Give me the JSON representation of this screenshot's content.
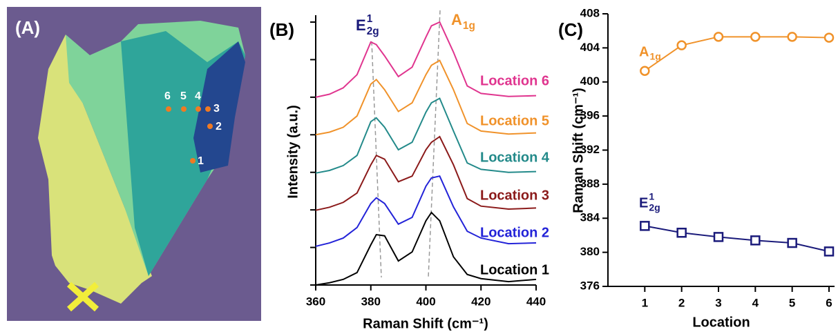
{
  "image_panel": {
    "label": "(A)",
    "points": [
      "1",
      "2",
      "3",
      "4",
      "5",
      "6"
    ]
  },
  "chart_data": [
    {
      "type": "line",
      "panel_label": "(B)",
      "xlabel": "Raman Shift (cm⁻¹)",
      "ylabel": "Intensity (a.u.)",
      "x": [
        360,
        365,
        370,
        375,
        380,
        382,
        385,
        390,
        395,
        400,
        402,
        405,
        410,
        415,
        420,
        430,
        440
      ],
      "xlim": [
        360,
        440
      ],
      "xticks": [
        360,
        380,
        400,
        420,
        440
      ],
      "ylim": [
        0,
        7
      ],
      "yticks": [
        0,
        1,
        2,
        3,
        4,
        5,
        6,
        7
      ],
      "annotations": [
        {
          "text": "E",
          "sup": "1",
          "sub": "2g"
        },
        {
          "text": "A",
          "sub": "1g"
        }
      ],
      "series": [
        {
          "name": "Location 1",
          "color": "#000000",
          "values": [
            0,
            0.06,
            0.15,
            0.33,
            1.07,
            1.34,
            1.31,
            0.64,
            0.88,
            1.71,
            1.93,
            1.71,
            0.75,
            0.28,
            0.17,
            0.09,
            0.15
          ]
        },
        {
          "name": "Location 2",
          "color": "#2323d8",
          "values": [
            1.03,
            1.12,
            1.25,
            1.53,
            2.17,
            2.32,
            2.17,
            1.62,
            1.8,
            2.63,
            2.85,
            2.9,
            2.08,
            1.43,
            1.25,
            1.1,
            1.12
          ]
        },
        {
          "name": "Location 3",
          "color": "#8b1a1a",
          "values": [
            1.99,
            2.07,
            2.2,
            2.45,
            3.2,
            3.45,
            3.35,
            2.75,
            2.9,
            3.6,
            3.8,
            3.95,
            3.2,
            2.3,
            2.1,
            2.02,
            2.05
          ]
        },
        {
          "name": "Location 4",
          "color": "#238a8a",
          "values": [
            2.98,
            3.05,
            3.18,
            3.45,
            4.35,
            4.45,
            4.2,
            3.6,
            3.8,
            4.6,
            4.85,
            4.97,
            4.1,
            3.25,
            3.08,
            3.0,
            3.02
          ]
        },
        {
          "name": "Location 5",
          "color": "#f0922a",
          "values": [
            4.0,
            4.07,
            4.2,
            4.5,
            5.35,
            5.47,
            5.2,
            4.62,
            4.85,
            5.6,
            5.85,
            5.98,
            5.2,
            4.3,
            4.1,
            4.02,
            4.05
          ]
        },
        {
          "name": "Location 6",
          "color": "#e0358f",
          "values": [
            5.0,
            5.08,
            5.25,
            5.6,
            6.47,
            6.4,
            6.1,
            5.55,
            5.8,
            6.6,
            6.9,
            7.0,
            6.2,
            5.3,
            5.1,
            5.02,
            5.04
          ]
        }
      ]
    },
    {
      "type": "line",
      "panel_label": "(C)",
      "xlabel": "Location",
      "ylabel": "Raman Shift (cm⁻¹)",
      "x": [
        1,
        2,
        3,
        4,
        5,
        6
      ],
      "xlim": [
        0,
        6.15
      ],
      "xticks": [
        1,
        2,
        3,
        4,
        5,
        6
      ],
      "ylim": [
        376,
        408
      ],
      "yticks": [
        376,
        380,
        384,
        388,
        392,
        396,
        400,
        404,
        408
      ],
      "series": [
        {
          "name": {
            "text": "A",
            "sub": "1g"
          },
          "color": "#f0922a",
          "marker": "circle",
          "values": [
            401.3,
            404.3,
            405.3,
            405.3,
            405.3,
            405.2
          ]
        },
        {
          "name": {
            "text": "E",
            "sup": "1",
            "sub": "2g"
          },
          "color": "#1a1a7a",
          "marker": "square",
          "values": [
            383.1,
            382.3,
            381.8,
            381.4,
            381.1,
            380.1
          ]
        }
      ]
    }
  ]
}
